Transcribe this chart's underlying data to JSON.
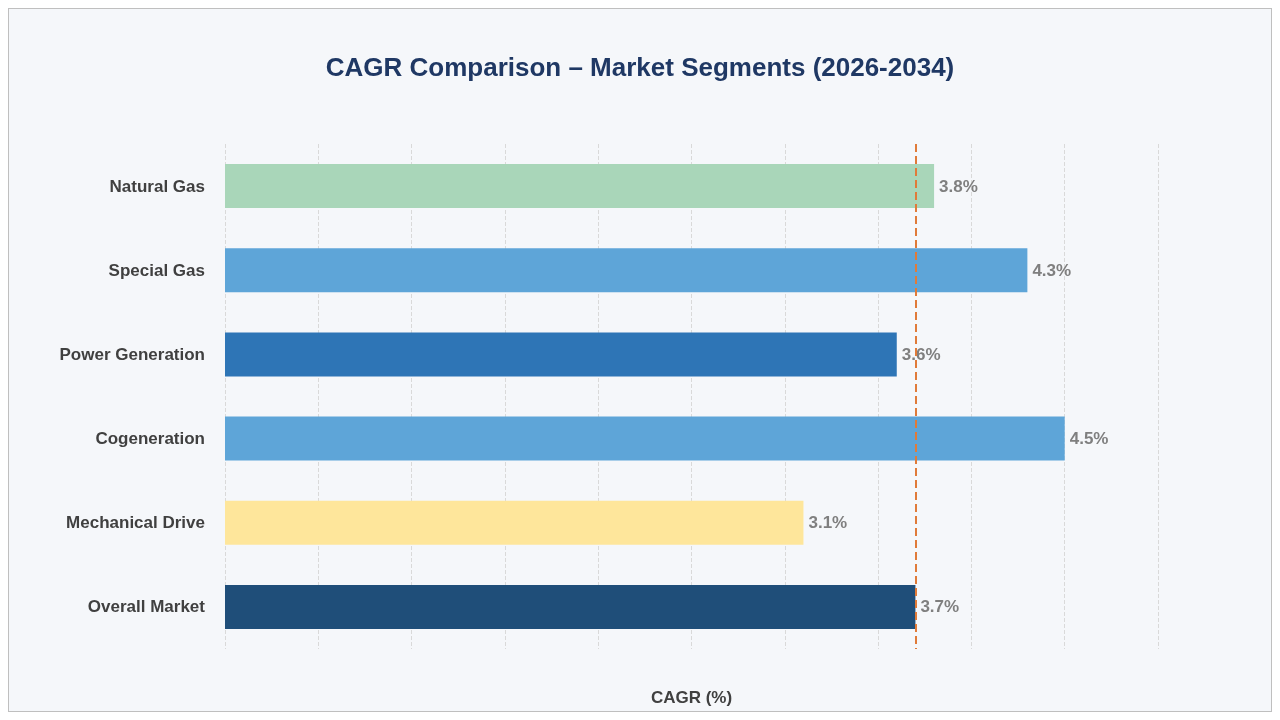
{
  "chart_data": {
    "type": "bar",
    "orientation": "horizontal",
    "title": "CAGR Comparison – Market Segments (2026-2034)",
    "xlabel": "CAGR (%)",
    "categories": [
      "Natural Gas",
      "Special Gas",
      "Power Generation",
      "Cogeneration",
      "Mechanical Drive",
      "Overall Market"
    ],
    "values": [
      3.8,
      4.3,
      3.6,
      4.5,
      3.1,
      3.7
    ],
    "colors": [
      "#a9d6b9",
      "#5ea5d8",
      "#2e75b6",
      "#5ea5d8",
      "#fee69b",
      "#1f4e79"
    ],
    "value_labels": [
      "3.8%",
      "4.3%",
      "3.6%",
      "4.5%",
      "3.1%",
      "3.7%"
    ],
    "xlim": [
      0,
      5
    ],
    "xticks": [
      {
        "value": 0,
        "label": null
      },
      {
        "value": 0.5,
        "label": null
      },
      {
        "value": 1,
        "label": null
      },
      {
        "value": 1.5,
        "label": null
      },
      {
        "value": 2,
        "label": null
      },
      {
        "value": 2.5,
        "label": null
      },
      {
        "value": 3,
        "label": null
      },
      {
        "value": 3.5,
        "label": null
      },
      {
        "value": 4,
        "label": null
      },
      {
        "value": 4.5,
        "label": null
      },
      {
        "value": 5,
        "label": null
      }
    ],
    "tick_labels": "y",
    "grid": "x",
    "ref_lines": [
      {
        "axis": "x",
        "value": 3.7,
        "color": "#e07b39",
        "line_style": "dashed"
      }
    ]
  }
}
